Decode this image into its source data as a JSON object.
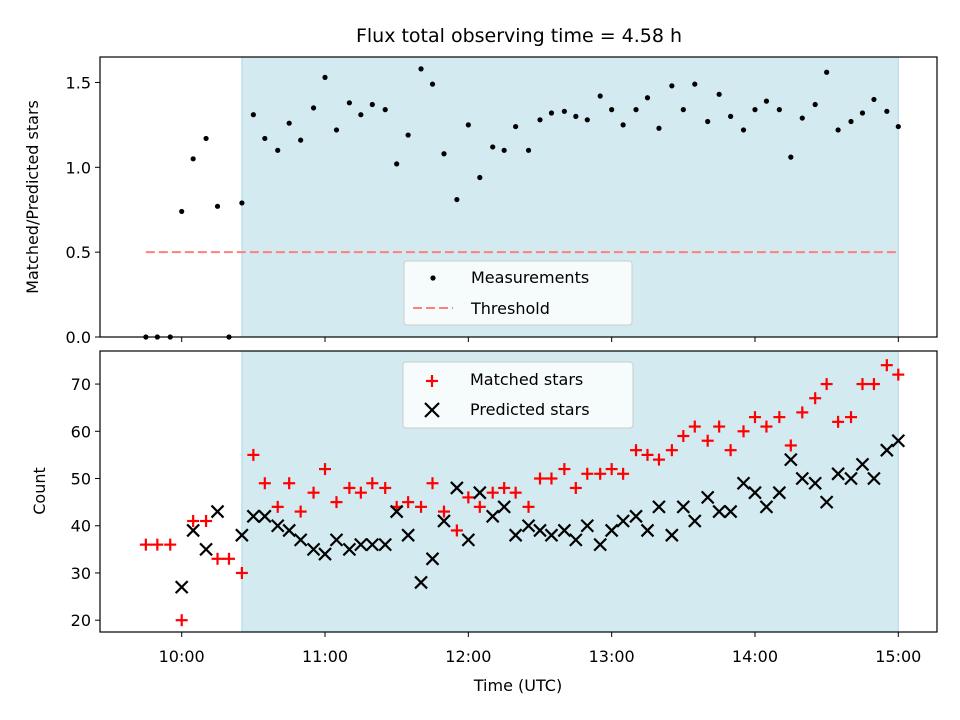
{
  "figure": {
    "title": "Flux total observing time = 4.58 h"
  },
  "top_panel": {
    "ylabel": "Matched/Predicted stars",
    "legend": {
      "measurements": "Measurements",
      "threshold": "Threshold"
    }
  },
  "bottom_panel": {
    "ylabel": "Count",
    "xlabel": "Time (UTC)",
    "legend": {
      "matched": "Matched stars",
      "predicted": "Predicted stars"
    }
  },
  "colors": {
    "shade": "#d3eaf0",
    "threshold": "#ff7f7f",
    "matched": "#ff0000",
    "predicted": "#000000",
    "measurements": "#000000"
  },
  "chart_data": [
    {
      "type": "scatter",
      "title": "Flux total observing time = 4.58 h",
      "xlabel": "",
      "ylabel": "Matched/Predicted stars",
      "xlim": [
        9.43,
        15.27
      ],
      "ylim": [
        0,
        1.65
      ],
      "yticks": [
        0.0,
        0.5,
        1.0,
        1.5
      ],
      "ytick_labels": [
        "0.0",
        "0.5",
        "1.0",
        "1.5"
      ],
      "xticks": [
        10,
        11,
        12,
        13,
        14,
        15
      ],
      "shaded_interval": [
        10.42,
        15.0
      ],
      "legend_position": "lower center",
      "threshold": {
        "name": "Threshold",
        "y": 0.5,
        "x": [
          9.75,
          15.0
        ],
        "style": "dashed"
      },
      "series": [
        {
          "name": "Measurements",
          "x": [
            9.75,
            9.83,
            9.92,
            10.0,
            10.08,
            10.17,
            10.25,
            10.33,
            10.42,
            10.5,
            10.58,
            10.67,
            10.75,
            10.83,
            10.92,
            11.0,
            11.08,
            11.17,
            11.25,
            11.33,
            11.42,
            11.5,
            11.58,
            11.67,
            11.75,
            11.83,
            11.92,
            12.0,
            12.08,
            12.17,
            12.25,
            12.33,
            12.42,
            12.5,
            12.58,
            12.67,
            12.75,
            12.83,
            12.92,
            13.0,
            13.08,
            13.17,
            13.25,
            13.33,
            13.42,
            13.5,
            13.58,
            13.67,
            13.75,
            13.83,
            13.92,
            14.0,
            14.08,
            14.17,
            14.25,
            14.33,
            14.42,
            14.5,
            14.58,
            14.67,
            14.75,
            14.83,
            14.92,
            15.0
          ],
          "y": [
            0.0,
            0.0,
            0.0,
            0.74,
            1.05,
            1.17,
            0.77,
            0.0,
            0.79,
            1.31,
            1.17,
            1.1,
            1.26,
            1.16,
            1.35,
            1.53,
            1.22,
            1.38,
            1.31,
            1.37,
            1.34,
            1.02,
            1.19,
            1.58,
            1.49,
            1.08,
            0.81,
            1.25,
            0.94,
            1.12,
            1.1,
            1.24,
            1.1,
            1.28,
            1.32,
            1.33,
            1.3,
            1.28,
            1.42,
            1.34,
            1.25,
            1.34,
            1.41,
            1.23,
            1.48,
            1.34,
            1.49,
            1.27,
            1.43,
            1.3,
            1.22,
            1.34,
            1.39,
            1.34,
            1.06,
            1.29,
            1.37,
            1.56,
            1.22,
            1.27,
            1.32,
            1.4,
            1.33,
            1.24
          ]
        }
      ]
    },
    {
      "type": "scatter",
      "xlabel": "Time (UTC)",
      "ylabel": "Count",
      "xlim": [
        9.43,
        15.27
      ],
      "ylim": [
        17.5,
        77
      ],
      "yticks": [
        20,
        30,
        40,
        50,
        60,
        70
      ],
      "ytick_labels": [
        "20",
        "30",
        "40",
        "50",
        "60",
        "70"
      ],
      "xticks": [
        10,
        11,
        12,
        13,
        14,
        15
      ],
      "xtick_labels": [
        "10:00",
        "11:00",
        "12:00",
        "13:00",
        "14:00",
        "15:00"
      ],
      "shaded_interval": [
        10.42,
        15.0
      ],
      "legend_position": "upper center",
      "series": [
        {
          "name": "Matched stars",
          "marker": "+",
          "x": [
            9.75,
            9.83,
            9.92,
            10.0,
            10.08,
            10.17,
            10.25,
            10.33,
            10.42,
            10.5,
            10.58,
            10.67,
            10.75,
            10.83,
            10.92,
            11.0,
            11.08,
            11.17,
            11.25,
            11.33,
            11.42,
            11.5,
            11.58,
            11.67,
            11.75,
            11.83,
            11.92,
            12.0,
            12.08,
            12.17,
            12.25,
            12.33,
            12.42,
            12.5,
            12.58,
            12.67,
            12.75,
            12.83,
            12.92,
            13.0,
            13.08,
            13.17,
            13.25,
            13.33,
            13.42,
            13.5,
            13.58,
            13.67,
            13.75,
            13.83,
            13.92,
            14.0,
            14.08,
            14.17,
            14.25,
            14.33,
            14.42,
            14.5,
            14.58,
            14.67,
            14.75,
            14.83,
            14.92,
            15.0
          ],
          "y": [
            36,
            36,
            36,
            20,
            41,
            41,
            33,
            33,
            30,
            55,
            49,
            44,
            49,
            43,
            47,
            52,
            45,
            48,
            47,
            49,
            48,
            44,
            45,
            44,
            49,
            43,
            39,
            46,
            44,
            47,
            48,
            47,
            44,
            50,
            50,
            52,
            48,
            51,
            51,
            52,
            51,
            56,
            55,
            54,
            56,
            59,
            61,
            58,
            61,
            56,
            60,
            63,
            61,
            63,
            57,
            64,
            67,
            70,
            62,
            63,
            70,
            70,
            74,
            72
          ]
        },
        {
          "name": "Predicted stars",
          "marker": "x",
          "x": [
            10.0,
            10.08,
            10.17,
            10.25,
            10.42,
            10.5,
            10.58,
            10.67,
            10.75,
            10.83,
            10.92,
            11.0,
            11.08,
            11.17,
            11.25,
            11.33,
            11.42,
            11.5,
            11.58,
            11.67,
            11.75,
            11.83,
            11.92,
            12.0,
            12.08,
            12.17,
            12.25,
            12.33,
            12.42,
            12.5,
            12.58,
            12.67,
            12.75,
            12.83,
            12.92,
            13.0,
            13.08,
            13.17,
            13.25,
            13.33,
            13.42,
            13.5,
            13.58,
            13.67,
            13.75,
            13.83,
            13.92,
            14.0,
            14.08,
            14.17,
            14.25,
            14.33,
            14.42,
            14.5,
            14.58,
            14.67,
            14.75,
            14.83,
            14.92,
            15.0
          ],
          "y": [
            27,
            39,
            35,
            43,
            38,
            42,
            42,
            40,
            39,
            37,
            35,
            34,
            37,
            35,
            36,
            36,
            36,
            43,
            38,
            28,
            33,
            41,
            48,
            37,
            47,
            42,
            44,
            38,
            40,
            39,
            38,
            39,
            37,
            40,
            36,
            39,
            41,
            42,
            39,
            44,
            38,
            44,
            41,
            46,
            43,
            43,
            49,
            47,
            44,
            47,
            54,
            50,
            49,
            45,
            51,
            50,
            53,
            50,
            56,
            58
          ]
        }
      ]
    }
  ]
}
